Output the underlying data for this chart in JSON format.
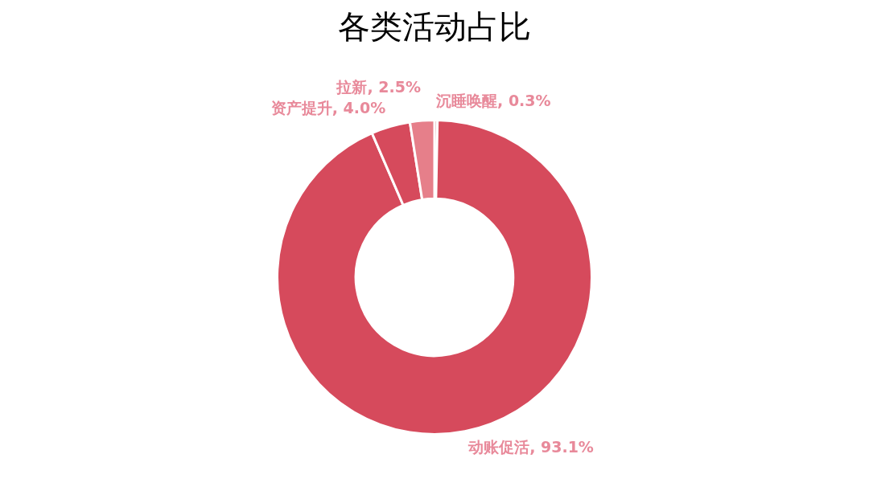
{
  "chart_data": {
    "type": "donut",
    "title": "各类活动占比",
    "categories": [
      "沉睡唤醒",
      "动账促活",
      "资产提升",
      "拉新"
    ],
    "values": [
      0.3,
      93.1,
      4.0,
      2.5
    ],
    "value_labels": [
      ", 0.3%",
      ", 93.1%",
      ", 4.0%",
      ", 2.5%"
    ],
    "colors": [
      "#b5364a",
      "#d64a5c",
      "#d64a5c",
      "#e67f8a"
    ],
    "legend": false
  }
}
